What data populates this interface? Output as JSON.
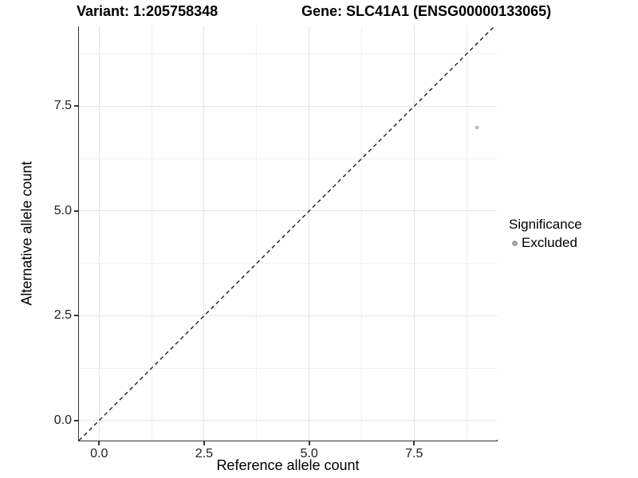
{
  "titles": {
    "variant": "Variant: 1:205758348",
    "gene": "Gene: SLC41A1 (ENSG00000133065)"
  },
  "chart_data": {
    "type": "scatter",
    "titles": {
      "variant": "Variant: 1:205758348",
      "gene": "Gene: SLC41A1 (ENSG00000133065)"
    },
    "xlabel": "Reference allele count",
    "ylabel": "Alternative allele count",
    "xlim": [
      -0.48,
      9.47
    ],
    "ylim": [
      -0.48,
      9.41
    ],
    "x_ticks": {
      "major": [
        0,
        2.5,
        5,
        7.5
      ],
      "labels": [
        "0.0",
        "2.5",
        "5.0",
        "7.5"
      ],
      "minor": [
        1.25,
        3.75,
        6.25,
        8.75
      ]
    },
    "y_ticks": {
      "major": [
        0,
        2.5,
        5,
        7.5
      ],
      "labels": [
        "0.0",
        "2.5",
        "5.0",
        "7.5"
      ],
      "minor": [
        1.25,
        3.75,
        6.25,
        8.75
      ]
    },
    "grid": true,
    "reference_line": {
      "type": "identity",
      "slope": 1,
      "intercept": 0,
      "style": "dashed",
      "color": "#111111"
    },
    "points": [
      {
        "x": 9,
        "y": 7,
        "series": "Excluded"
      }
    ],
    "legend": {
      "title": "Significance",
      "position": "right",
      "items": [
        {
          "label": "Excluded",
          "color": "#a3a3a3"
        }
      ]
    },
    "series_colors": {
      "Excluded": "#c0c0c0"
    }
  },
  "colors": {
    "axis_line": "#333333",
    "grid_major": "#e3e3e3",
    "grid_minor": "#f0f0f0",
    "background": "#ffffff"
  }
}
